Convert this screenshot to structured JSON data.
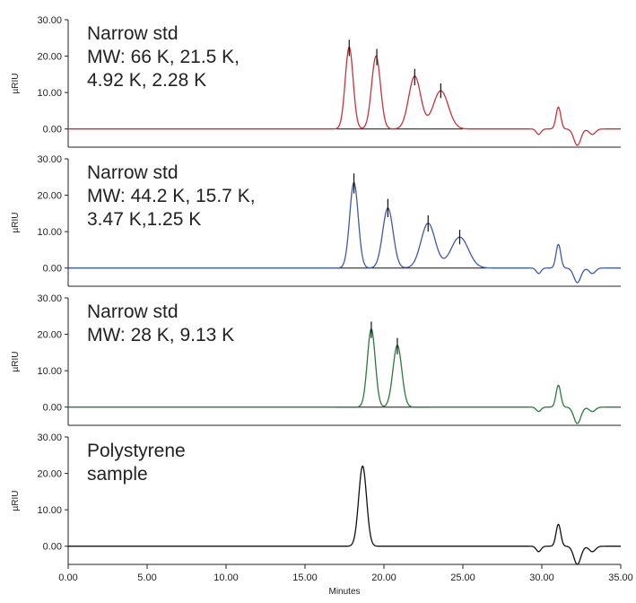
{
  "chart_data": [
    {
      "type": "line",
      "title": "",
      "ylabel": "µRIU",
      "xlabel": "",
      "xlim": [
        0,
        35
      ],
      "ylim": [
        -5,
        30
      ],
      "yticks": [
        "30.00",
        "20.00",
        "10.00",
        "0.00"
      ],
      "annotation": [
        "Narrow std",
        "MW: 66 K, 21.5 K,",
        "4.92 K, 2.28 K"
      ],
      "color": "#c8323a",
      "peaks": [
        {
          "time": 17.8,
          "height": 22.5,
          "width": 0.25
        },
        {
          "time": 19.5,
          "height": 20.0,
          "width": 0.28
        },
        {
          "time": 21.95,
          "height": 14.5,
          "width": 0.38
        },
        {
          "time": 23.6,
          "height": 10.5,
          "width": 0.48
        }
      ],
      "system_peaks": [
        {
          "time": 29.8,
          "height": -1.5,
          "width": 0.15
        },
        {
          "time": 31.05,
          "height": 6.0,
          "width": 0.15
        },
        {
          "time": 32.25,
          "height": -4.5,
          "width": 0.22
        },
        {
          "time": 33.2,
          "height": -1.5,
          "width": 0.2
        }
      ],
      "markers": [
        {
          "time": 17.8,
          "top": 24.5,
          "bottom": 20.0
        },
        {
          "time": 19.55,
          "top": 22.0,
          "bottom": 17.5
        },
        {
          "time": 21.95,
          "top": 16.5,
          "bottom": 12.0
        },
        {
          "time": 23.6,
          "top": 12.5,
          "bottom": 8.5
        }
      ],
      "baseline_range": [
        17.0,
        25.0
      ]
    },
    {
      "type": "line",
      "title": "",
      "ylabel": "µRIU",
      "xlabel": "",
      "xlim": [
        0,
        35
      ],
      "ylim": [
        -5,
        30
      ],
      "yticks": [
        "30.00",
        "20.00",
        "10.00",
        "0.00"
      ],
      "annotation": [
        "Narrow std",
        "MW: 44.2 K, 15.7 K,",
        "3.47 K,1.25 K"
      ],
      "color": "#3f5aa0",
      "peaks": [
        {
          "time": 18.1,
          "height": 23.5,
          "width": 0.27
        },
        {
          "time": 20.25,
          "height": 16.5,
          "width": 0.33
        },
        {
          "time": 22.8,
          "height": 12.3,
          "width": 0.45
        },
        {
          "time": 24.8,
          "height": 8.5,
          "width": 0.55
        }
      ],
      "system_peaks": [
        {
          "time": 29.8,
          "height": -1.5,
          "width": 0.15
        },
        {
          "time": 31.05,
          "height": 6.5,
          "width": 0.15
        },
        {
          "time": 32.25,
          "height": -4.0,
          "width": 0.22
        },
        {
          "time": 33.2,
          "height": -1.5,
          "width": 0.2
        }
      ],
      "markers": [
        {
          "time": 18.1,
          "top": 26.0,
          "bottom": 20.5
        },
        {
          "time": 20.25,
          "top": 19.0,
          "bottom": 14.0
        },
        {
          "time": 22.8,
          "top": 14.5,
          "bottom": 10.0
        },
        {
          "time": 24.8,
          "top": 10.5,
          "bottom": 6.5
        }
      ],
      "baseline_range": [
        17.0,
        26.5
      ]
    },
    {
      "type": "line",
      "title": "",
      "ylabel": "µRIU",
      "xlabel": "",
      "xlim": [
        0,
        35
      ],
      "ylim": [
        -5,
        30
      ],
      "yticks": [
        "30.00",
        "20.00",
        "10.00",
        "0.00"
      ],
      "annotation": [
        "Narrow std",
        "MW: 28 K, 9.13 K"
      ],
      "color": "#2a7a3b",
      "peaks": [
        {
          "time": 19.2,
          "height": 21.5,
          "width": 0.25
        },
        {
          "time": 20.85,
          "height": 17.0,
          "width": 0.28
        }
      ],
      "system_peaks": [
        {
          "time": 29.8,
          "height": -1.2,
          "width": 0.15
        },
        {
          "time": 31.05,
          "height": 6.0,
          "width": 0.15
        },
        {
          "time": 32.25,
          "height": -4.5,
          "width": 0.22
        },
        {
          "time": 33.2,
          "height": -1.2,
          "width": 0.2
        }
      ],
      "markers": [
        {
          "time": 19.2,
          "top": 23.5,
          "bottom": 19.0
        },
        {
          "time": 20.85,
          "top": 19.0,
          "bottom": 14.5
        }
      ],
      "baseline_range": [
        17.0,
        23.0
      ]
    },
    {
      "type": "line",
      "title": "",
      "ylabel": "µRIU",
      "xlabel": "Minutes",
      "xlim": [
        0,
        35
      ],
      "ylim": [
        -5,
        30
      ],
      "yticks": [
        "30.00",
        "20.00",
        "10.00",
        "0.00"
      ],
      "xticks": [
        "0.00",
        "5.00",
        "10.00",
        "15.00",
        "20.00",
        "25.00",
        "30.00",
        "35.00"
      ],
      "annotation": [
        "Polystyrene",
        "sample"
      ],
      "color": "#111111",
      "peaks": [
        {
          "time": 18.65,
          "height": 22.0,
          "width": 0.25
        }
      ],
      "system_peaks": [
        {
          "time": 29.8,
          "height": -1.5,
          "width": 0.15
        },
        {
          "time": 31.05,
          "height": 6.0,
          "width": 0.15
        },
        {
          "time": 32.25,
          "height": -5.0,
          "width": 0.22
        },
        {
          "time": 33.2,
          "height": -1.5,
          "width": 0.2
        }
      ],
      "markers": [],
      "baseline_range": null
    }
  ]
}
